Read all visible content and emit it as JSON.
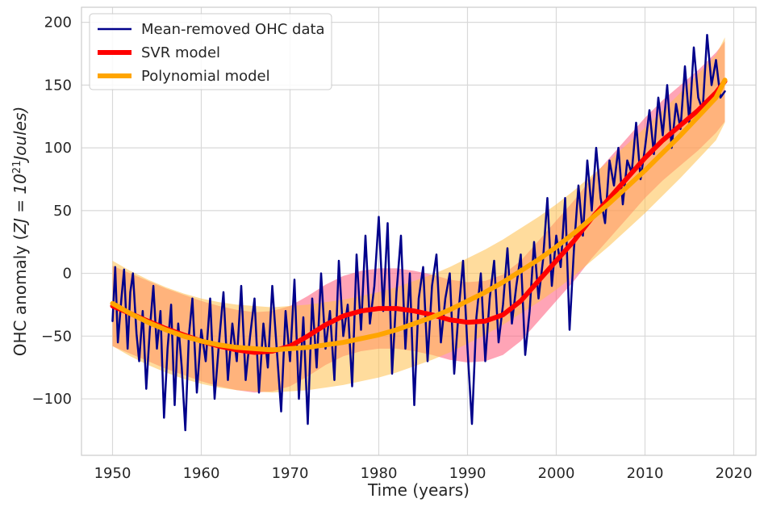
{
  "chart_data": {
    "type": "line",
    "title": "",
    "xlabel": "Time (years)",
    "ylabel": "OHC anomaly (ZJ = 10²¹ Joules)",
    "ylabel_parts": {
      "text": "OHC anomaly (",
      "math": "ZJ = 10",
      "sup": "21",
      "tail": "Joules)"
    },
    "xlim": [
      1946.5,
      2022.5
    ],
    "ylim": [
      -145,
      212
    ],
    "xticks": [
      1950,
      1960,
      1970,
      1980,
      1990,
      2000,
      2010,
      2020
    ],
    "yticks": [
      -100,
      -50,
      0,
      50,
      100,
      150,
      200
    ],
    "grid": true,
    "legend_position": "top-left",
    "series": [
      {
        "name": "Mean-removed OHC data",
        "color": "#00008b",
        "style": "line",
        "x": [
          1950.0,
          1950.3,
          1950.6,
          1951.0,
          1951.3,
          1951.7,
          1952.0,
          1952.3,
          1952.7,
          1953.0,
          1953.4,
          1953.8,
          1954.2,
          1954.6,
          1955.0,
          1955.4,
          1955.8,
          1956.2,
          1956.6,
          1957.0,
          1957.4,
          1957.8,
          1958.2,
          1958.6,
          1959.0,
          1959.5,
          1960.0,
          1960.5,
          1961.0,
          1961.5,
          1962.0,
          1962.5,
          1963.0,
          1963.5,
          1964.0,
          1964.5,
          1965.0,
          1965.5,
          1966.0,
          1966.5,
          1967.0,
          1967.5,
          1968.0,
          1968.5,
          1969.0,
          1969.5,
          1970.0,
          1970.5,
          1971.0,
          1971.5,
          1972.0,
          1972.5,
          1973.0,
          1973.5,
          1974.0,
          1974.5,
          1975.0,
          1975.5,
          1976.0,
          1976.5,
          1977.0,
          1977.5,
          1978.0,
          1978.5,
          1979.0,
          1979.5,
          1980.0,
          1980.5,
          1981.0,
          1981.5,
          1982.0,
          1982.5,
          1983.0,
          1983.5,
          1984.0,
          1984.5,
          1985.0,
          1985.5,
          1986.0,
          1986.5,
          1987.0,
          1987.5,
          1988.0,
          1988.5,
          1989.0,
          1989.5,
          1990.0,
          1990.5,
          1991.0,
          1991.5,
          1992.0,
          1992.5,
          1993.0,
          1993.5,
          1994.0,
          1994.5,
          1995.0,
          1995.5,
          1996.0,
          1996.5,
          1997.0,
          1997.5,
          1998.0,
          1998.5,
          1999.0,
          1999.5,
          2000.0,
          2000.5,
          2001.0,
          2001.5,
          2002.0,
          2002.5,
          2003.0,
          2003.5,
          2004.0,
          2004.5,
          2005.0,
          2005.5,
          2006.0,
          2006.5,
          2007.0,
          2007.5,
          2008.0,
          2008.5,
          2009.0,
          2009.5,
          2010.0,
          2010.5,
          2011.0,
          2011.5,
          2012.0,
          2012.5,
          2013.0,
          2013.5,
          2014.0,
          2014.5,
          2015.0,
          2015.5,
          2016.0,
          2016.5,
          2017.0,
          2017.5,
          2018.0,
          2018.5,
          2019.0
        ],
        "y": [
          -38,
          5,
          -55,
          -20,
          3,
          -60,
          -15,
          0,
          -48,
          -70,
          -30,
          -92,
          -45,
          -10,
          -60,
          -30,
          -115,
          -60,
          -25,
          -105,
          -40,
          -75,
          -125,
          -50,
          -20,
          -95,
          -45,
          -70,
          -20,
          -100,
          -55,
          -15,
          -85,
          -40,
          -70,
          -10,
          -85,
          -50,
          -20,
          -95,
          -40,
          -75,
          -10,
          -60,
          -110,
          -30,
          -70,
          -5,
          -100,
          -35,
          -120,
          -20,
          -75,
          0,
          -60,
          -30,
          -85,
          10,
          -50,
          -25,
          -90,
          15,
          -45,
          30,
          -40,
          -10,
          45,
          -30,
          40,
          -80,
          -15,
          30,
          -60,
          0,
          -105,
          -20,
          5,
          -70,
          -10,
          15,
          -55,
          -20,
          0,
          -80,
          -30,
          10,
          -60,
          -120,
          -35,
          0,
          -70,
          -20,
          10,
          -55,
          -25,
          20,
          -40,
          -10,
          15,
          -65,
          -30,
          25,
          -20,
          10,
          60,
          -10,
          30,
          5,
          60,
          -45,
          20,
          70,
          30,
          90,
          50,
          100,
          60,
          40,
          90,
          70,
          100,
          55,
          90,
          80,
          120,
          75,
          100,
          130,
          95,
          140,
          110,
          150,
          100,
          135,
          115,
          165,
          120,
          180,
          140,
          130,
          190,
          150,
          170,
          140,
          145
        ]
      },
      {
        "name": "SVR model",
        "color": "#ff0000",
        "style": "thick-line",
        "x": [
          1950,
          1952,
          1954,
          1956,
          1958,
          1960,
          1962,
          1964,
          1966,
          1968,
          1970,
          1972,
          1974,
          1976,
          1978,
          1980,
          1982,
          1984,
          1986,
          1988,
          1990,
          1992,
          1994,
          1996,
          1998,
          2000,
          2002,
          2004,
          2006,
          2008,
          2010,
          2012,
          2014,
          2016,
          2018,
          2019
        ],
        "y": [
          -26,
          -32,
          -38,
          -44,
          -49,
          -54,
          -58,
          -61,
          -63,
          -62,
          -58,
          -50,
          -41,
          -34,
          -30,
          -28,
          -28,
          -30,
          -33,
          -37,
          -39,
          -38,
          -33,
          -22,
          -6,
          10,
          26,
          44,
          60,
          76,
          92,
          106,
          118,
          130,
          144,
          153
        ]
      },
      {
        "name": "Polynomial model",
        "color": "#ffa500",
        "style": "thick-line",
        "x": [
          1950,
          1952,
          1954,
          1956,
          1958,
          1960,
          1962,
          1964,
          1966,
          1968,
          1970,
          1972,
          1974,
          1976,
          1978,
          1980,
          1982,
          1984,
          1986,
          1988,
          1990,
          1992,
          1994,
          1996,
          1998,
          2000,
          2002,
          2004,
          2006,
          2008,
          2010,
          2012,
          2014,
          2016,
          2018,
          2019
        ],
        "y": [
          -24,
          -32,
          -39,
          -45,
          -50,
          -54,
          -57,
          -59,
          -60,
          -61,
          -60,
          -59,
          -57,
          -55,
          -52,
          -49,
          -45,
          -40,
          -35,
          -29,
          -22,
          -15,
          -7,
          2,
          11,
          21,
          32,
          44,
          56,
          69,
          82,
          96,
          110,
          125,
          140,
          154
        ]
      }
    ],
    "bands": [
      {
        "name": "SVR model band",
        "color": "#ff5a7a",
        "opacity": 0.55,
        "series": "SVR model",
        "halfwidth": 32
      },
      {
        "name": "Polynomial model band",
        "color": "#ffc04d",
        "opacity": 0.55,
        "series": "Polynomial model",
        "halfwidth": 34
      }
    ]
  }
}
